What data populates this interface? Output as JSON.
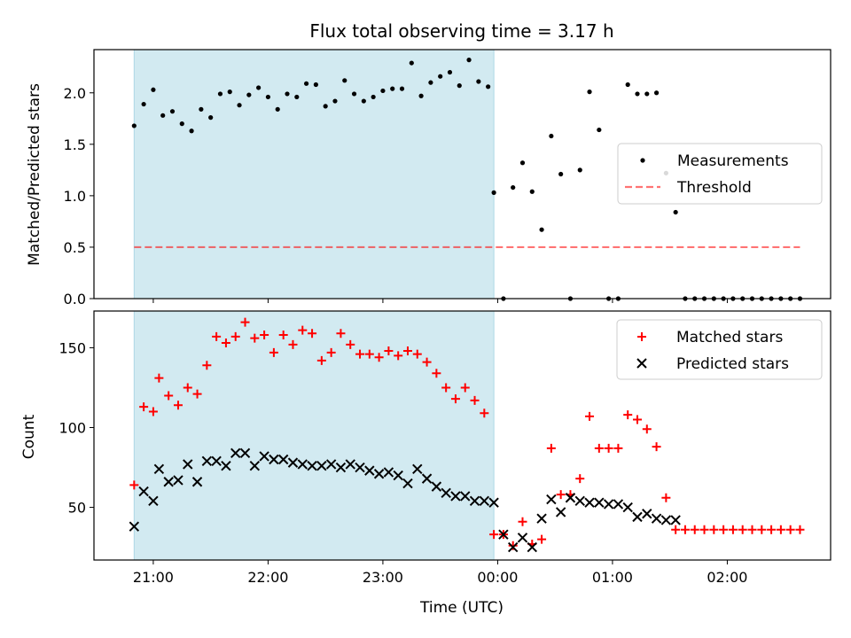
{
  "chart_data": [
    {
      "type": "scatter",
      "title": "Flux total observing time = 3.17 h",
      "xlabel": "",
      "ylabel": "Matched/Predicted stars",
      "ylim": [
        0,
        2.42
      ],
      "yticks": [
        0.0,
        0.5,
        1.0,
        1.5,
        2.0
      ],
      "ytick_labels": [
        "0.0",
        "0.5",
        "1.0",
        "1.5",
        "2.0"
      ],
      "legend_position": "center-right",
      "shaded_region_x": [
        "20:50",
        "23:58"
      ],
      "colors": {
        "shade": "#add8e6",
        "measurements": "#000000",
        "threshold": "#ff0000"
      },
      "series": [
        {
          "name": "Measurements",
          "marker": "dot",
          "x": [
            "20:50",
            "20:55",
            "21:00",
            "21:05",
            "21:10",
            "21:15",
            "21:20",
            "21:25",
            "21:30",
            "21:35",
            "21:40",
            "21:45",
            "21:50",
            "21:55",
            "22:00",
            "22:05",
            "22:10",
            "22:15",
            "22:20",
            "22:25",
            "22:30",
            "22:35",
            "22:40",
            "22:45",
            "22:50",
            "22:55",
            "23:00",
            "23:05",
            "23:10",
            "23:15",
            "23:20",
            "23:25",
            "23:30",
            "23:35",
            "23:40",
            "23:45",
            "23:50",
            "23:55",
            "23:58",
            "00:03",
            "00:08",
            "00:13",
            "00:18",
            "00:23",
            "00:28",
            "00:33",
            "00:38",
            "00:43",
            "00:48",
            "00:53",
            "00:58",
            "01:03",
            "01:08",
            "01:13",
            "01:18",
            "01:23",
            "01:28",
            "01:33",
            "01:38",
            "01:43",
            "01:48",
            "01:53",
            "01:58",
            "02:03",
            "02:08",
            "02:13",
            "02:18",
            "02:23",
            "02:28",
            "02:33",
            "02:38"
          ],
          "y": [
            1.68,
            1.89,
            2.03,
            1.78,
            1.82,
            1.7,
            1.63,
            1.84,
            1.76,
            1.99,
            2.01,
            1.88,
            1.98,
            2.05,
            1.96,
            1.84,
            1.99,
            1.96,
            2.09,
            2.08,
            1.87,
            1.92,
            2.12,
            1.99,
            1.92,
            1.96,
            2.02,
            2.04,
            2.04,
            2.29,
            1.97,
            2.1,
            2.16,
            2.2,
            2.07,
            2.32,
            2.11,
            2.06,
            1.03,
            0.0,
            1.08,
            1.32,
            1.04,
            0.67,
            1.58,
            1.21,
            0.0,
            1.25,
            2.01,
            1.64,
            0.0,
            0.0,
            2.08,
            1.99,
            1.99,
            2.0,
            1.22,
            0.84,
            0.0,
            0.0,
            0.0,
            0.0,
            0.0,
            0.0,
            0.0,
            0.0,
            0.0,
            0.0,
            0.0,
            0.0,
            0.0
          ]
        },
        {
          "name": "Threshold",
          "marker": "dashed-line",
          "x": [
            "20:50",
            "02:38"
          ],
          "y": [
            0.5,
            0.5
          ]
        }
      ]
    },
    {
      "type": "scatter",
      "xlabel": "Time (UTC)",
      "ylabel": "Count",
      "ylim": [
        17,
        173
      ],
      "yticks": [
        50,
        100,
        150
      ],
      "ytick_labels": [
        "50",
        "100",
        "150"
      ],
      "xlim": [
        "20:29",
        "02:54"
      ],
      "xticks": [
        "21:00",
        "22:00",
        "23:00",
        "00:00",
        "01:00",
        "02:00"
      ],
      "xtick_labels": [
        "21:00",
        "22:00",
        "23:00",
        "00:00",
        "01:00",
        "02:00"
      ],
      "legend_position": "top-right",
      "shaded_region_x": [
        "20:50",
        "23:58"
      ],
      "colors": {
        "shade": "#add8e6",
        "matched": "#ff0000",
        "predicted": "#000000"
      },
      "series": [
        {
          "name": "Matched stars",
          "marker": "plus",
          "x": [
            "20:50",
            "20:55",
            "21:00",
            "21:03",
            "21:08",
            "21:13",
            "21:18",
            "21:23",
            "21:28",
            "21:33",
            "21:38",
            "21:43",
            "21:48",
            "21:53",
            "21:58",
            "22:03",
            "22:08",
            "22:13",
            "22:18",
            "22:23",
            "22:28",
            "22:33",
            "22:38",
            "22:43",
            "22:48",
            "22:53",
            "22:58",
            "23:03",
            "23:08",
            "23:13",
            "23:18",
            "23:23",
            "23:28",
            "23:33",
            "23:38",
            "23:43",
            "23:48",
            "23:53",
            "23:58",
            "00:03",
            "00:08",
            "00:13",
            "00:18",
            "00:23",
            "00:28",
            "00:33",
            "00:38",
            "00:43",
            "00:48",
            "00:53",
            "00:58",
            "01:03",
            "01:08",
            "01:13",
            "01:18",
            "01:23",
            "01:28",
            "01:33",
            "01:38",
            "01:43",
            "01:48",
            "01:53",
            "01:58",
            "02:03",
            "02:08",
            "02:13",
            "02:18",
            "02:23",
            "02:28",
            "02:33",
            "02:38"
          ],
          "y": [
            64,
            113,
            110,
            131,
            120,
            114,
            125,
            121,
            139,
            157,
            153,
            157,
            166,
            156,
            158,
            147,
            158,
            152,
            161,
            159,
            142,
            147,
            159,
            152,
            146,
            146,
            144,
            148,
            145,
            148,
            146,
            141,
            134,
            125,
            118,
            125,
            117,
            109,
            33,
            33,
            26,
            41,
            27,
            30,
            87,
            58,
            58,
            68,
            107,
            87,
            87,
            87,
            108,
            105,
            99,
            88,
            56,
            36,
            36,
            36,
            36,
            36,
            36,
            36,
            36,
            36,
            36,
            36,
            36,
            36,
            36
          ]
        },
        {
          "name": "Predicted stars",
          "marker": "x",
          "x": [
            "20:50",
            "20:55",
            "21:00",
            "21:03",
            "21:08",
            "21:13",
            "21:18",
            "21:23",
            "21:28",
            "21:33",
            "21:38",
            "21:43",
            "21:48",
            "21:53",
            "21:58",
            "22:03",
            "22:08",
            "22:13",
            "22:18",
            "22:23",
            "22:28",
            "22:33",
            "22:38",
            "22:43",
            "22:48",
            "22:53",
            "22:58",
            "23:03",
            "23:08",
            "23:13",
            "23:18",
            "23:23",
            "23:28",
            "23:33",
            "23:38",
            "23:43",
            "23:48",
            "23:53",
            "23:58",
            "00:03",
            "00:08",
            "00:13",
            "00:18",
            "00:23",
            "00:28",
            "00:33",
            "00:38",
            "00:43",
            "00:48",
            "00:53",
            "00:58",
            "01:03",
            "01:08",
            "01:13",
            "01:18",
            "01:23",
            "01:28",
            "01:33"
          ],
          "y": [
            38,
            60,
            54,
            74,
            66,
            67,
            77,
            66,
            79,
            79,
            76,
            84,
            84,
            76,
            82,
            80,
            80,
            78,
            77,
            76,
            76,
            77,
            75,
            77,
            75,
            73,
            71,
            72,
            70,
            65,
            74,
            68,
            63,
            59,
            57,
            57,
            54,
            54,
            53,
            33,
            25,
            31,
            25,
            43,
            55,
            47,
            56,
            54,
            53,
            53,
            52,
            52,
            50,
            44,
            46,
            43,
            42,
            42
          ]
        }
      ]
    }
  ]
}
